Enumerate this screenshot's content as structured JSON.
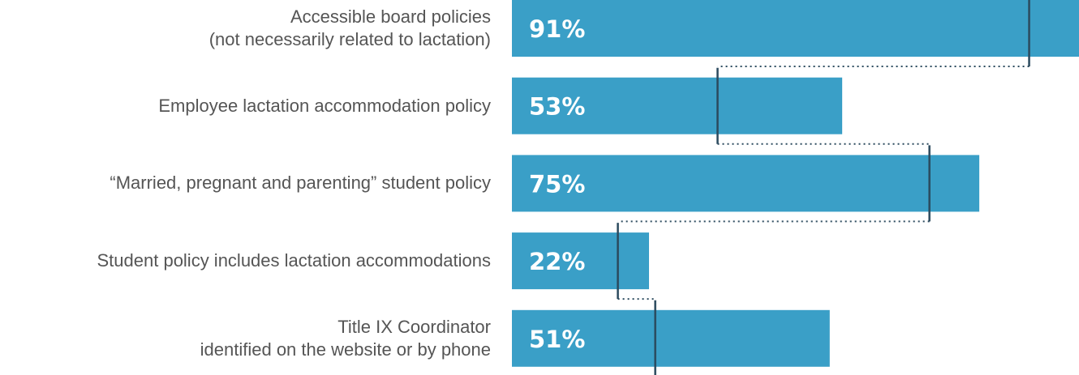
{
  "chart_data": {
    "type": "hbar",
    "categories": [
      "Accessible board policies\n(not necessarily related to lactation)",
      "Employee lactation accommodation policy",
      "“Married, pregnant and parenting” student policy",
      "Student policy includes lactation accommodations",
      "Title IX Coordinator\nidentified on the website or by phone"
    ],
    "values": [
      91,
      53,
      75,
      22,
      51
    ],
    "value_labels": [
      "91%",
      "53%",
      "75%",
      "22%",
      "51%"
    ],
    "markers": [
      83,
      33,
      67,
      17,
      23
    ],
    "color": "#3a9fc7",
    "marker_color": "#2b4a5e",
    "xlim": [
      0,
      91
    ]
  }
}
